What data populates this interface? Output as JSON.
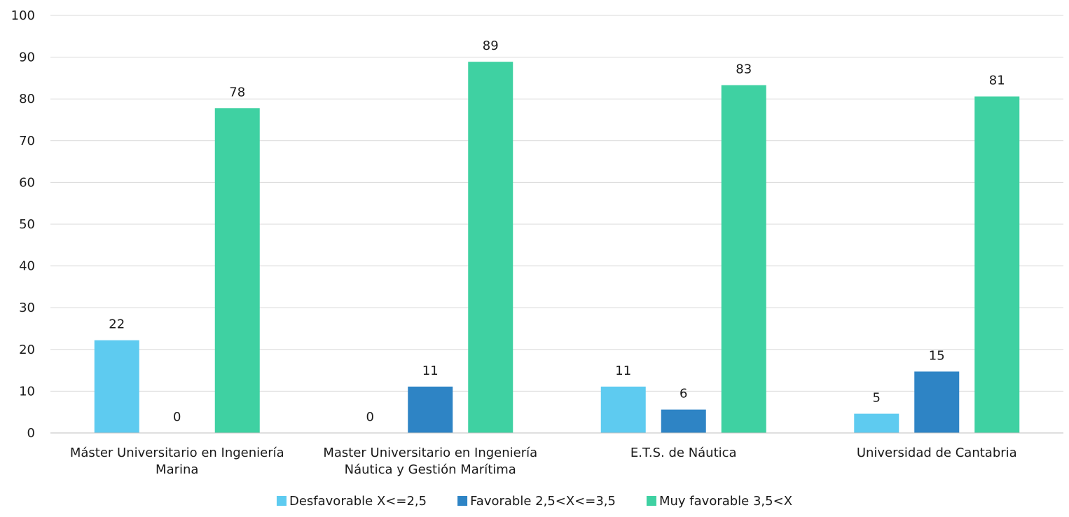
{
  "chart_data": {
    "type": "bar",
    "categories": [
      [
        "Máster Universitario en Ingeniería",
        "Marina"
      ],
      [
        "Master Universitario en Ingeniería",
        "Náutica y Gestión Marítima"
      ],
      [
        "E.T.S. de Náutica"
      ],
      [
        "Universidad de Cantabria"
      ]
    ],
    "series": [
      {
        "name": "Desfavorable X<=2,5",
        "color": "#5ecbf0",
        "values": [
          22.2,
          0,
          11.1,
          4.6
        ],
        "labels": [
          "22",
          "0",
          "11",
          "5"
        ]
      },
      {
        "name": "Favorable 2,5<X<=3,5",
        "color": "#2e84c5",
        "values": [
          0,
          11.1,
          5.6,
          14.7
        ],
        "labels": [
          "0",
          "11",
          "6",
          "15"
        ]
      },
      {
        "name": "Muy favorable 3,5<X",
        "color": "#3fd1a2",
        "values": [
          77.8,
          88.9,
          83.3,
          80.6
        ],
        "labels": [
          "78",
          "89",
          "83",
          "81"
        ]
      }
    ],
    "ylim": [
      0,
      100
    ],
    "yticks": [
      "0",
      "10",
      "20",
      "30",
      "40",
      "50",
      "60",
      "70",
      "80",
      "90",
      "100"
    ],
    "grid": true,
    "legend_position": "bottom"
  }
}
